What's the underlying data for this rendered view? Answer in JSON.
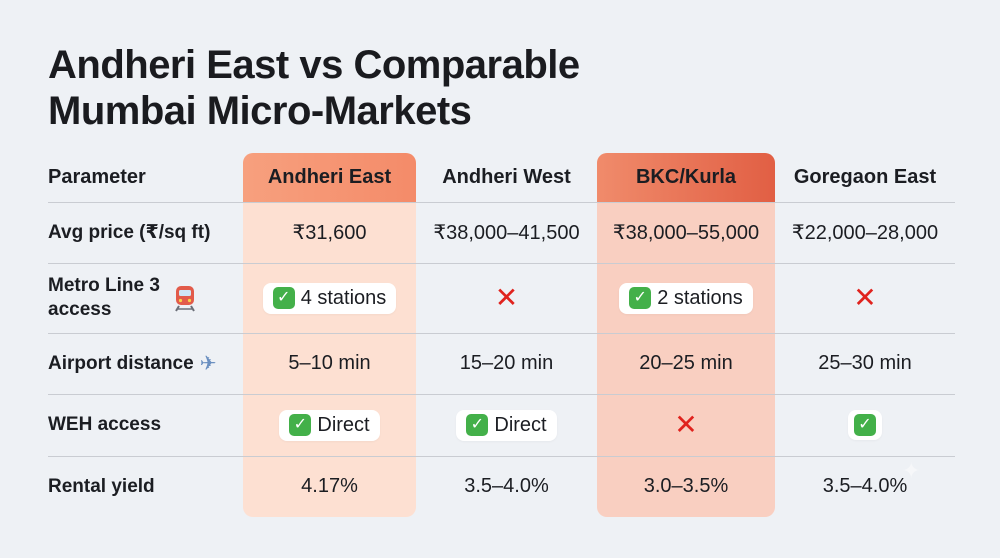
{
  "title": {
    "line1": "Andheri East vs Comparable",
    "line2": "Mumbai Micro-Markets"
  },
  "table": {
    "headers": [
      "Parameter",
      "Andheri East",
      "Andheri West",
      "BKC/Kurla",
      "Goregaon East"
    ],
    "highlight_colors": {
      "andheri_east": "#f48b69",
      "bkc_kurla": "#e15f44"
    },
    "rows": {
      "price": {
        "label": "Avg price (₹/sq ft)",
        "values": [
          "₹31,600",
          "₹38,000–41,500",
          "₹38,000–55,000",
          "₹22,000–28,000"
        ]
      },
      "metro": {
        "label_line1": "Metro Line 3",
        "label_line2": "access",
        "icon": "train-icon",
        "andheri_east": "4 stations",
        "bkc_kurla": "2 stations"
      },
      "airport": {
        "label": "Airport distance",
        "icon": "airplane-icon",
        "values": [
          "5–10 min",
          "15–20 min",
          "20–25 min",
          "25–30 min"
        ]
      },
      "weh": {
        "label": "WEH access",
        "andheri_east": "Direct",
        "andheri_west": "Direct"
      },
      "yield": {
        "label": "Rental yield",
        "values": [
          "4.17%",
          "3.5–4.0%",
          "3.0–3.5%",
          "3.5–4.0%"
        ]
      }
    }
  }
}
